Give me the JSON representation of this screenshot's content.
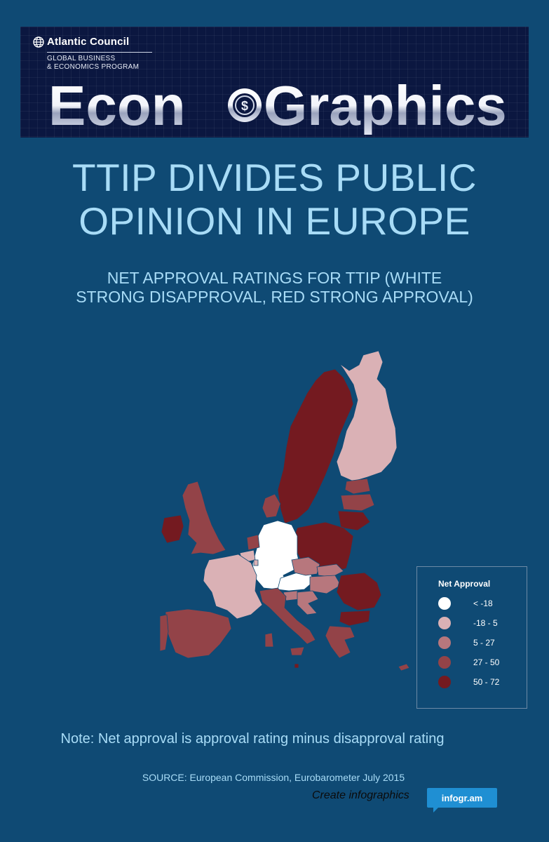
{
  "header": {
    "org_name": "Atlantic Council",
    "program_line1": "GLOBAL BUSINESS",
    "program_line2": "& ECONOMICS PROGRAM",
    "brand_part1": "Econ",
    "brand_part2": "Graphics"
  },
  "title_line1": "TTIP DIVIDES PUBLIC",
  "title_line2": "OPINION IN EUROPE",
  "subtitle_line1": "NET APPROVAL RATINGS FOR TTIP (WHITE",
  "subtitle_line2": "STRONG DISAPPROVAL, RED STRONG APPROVAL)",
  "legend": {
    "title": "Net Approval",
    "items": [
      {
        "label": "< -18",
        "color": "#ffffff"
      },
      {
        "label": "-18 - 5",
        "color": "#dab1b5"
      },
      {
        "label": "5 - 27",
        "color": "#b7777d"
      },
      {
        "label": "27 - 50",
        "color": "#934348"
      },
      {
        "label": "50 - 72",
        "color": "#741a20"
      }
    ]
  },
  "map_classes": {
    "Germany": "< -18",
    "Austria": "< -18",
    "Finland": "-18 - 5",
    "France": "-18 - 5",
    "Belgium": "-18 - 5",
    "Luxembourg": "-18 - 5",
    "Czech Republic": "5 - 27",
    "Slovenia": "5 - 27",
    "Slovakia": "5 - 27",
    "Hungary": "5 - 27",
    "Croatia": "5 - 27",
    "United Kingdom": "27 - 50",
    "Spain": "27 - 50",
    "Portugal": "27 - 50",
    "Italy": "27 - 50",
    "Greece": "27 - 50",
    "Netherlands": "27 - 50",
    "Denmark": "27 - 50",
    "Latvia": "27 - 50",
    "Estonia": "27 - 50",
    "Cyprus": "27 - 50",
    "Sweden": "50 - 72",
    "Ireland": "50 - 72",
    "Poland": "50 - 72",
    "Lithuania": "50 - 72",
    "Romania": "50 - 72",
    "Bulgaria": "50 - 72",
    "Malta": "50 - 72"
  },
  "note": "Note: Net approval is approval rating minus disapproval rating",
  "source": "SOURCE: European Commission, Eurobarometer July 2015",
  "footer": {
    "create_text": "Create infographics",
    "badge_text": "infogr.am"
  }
}
